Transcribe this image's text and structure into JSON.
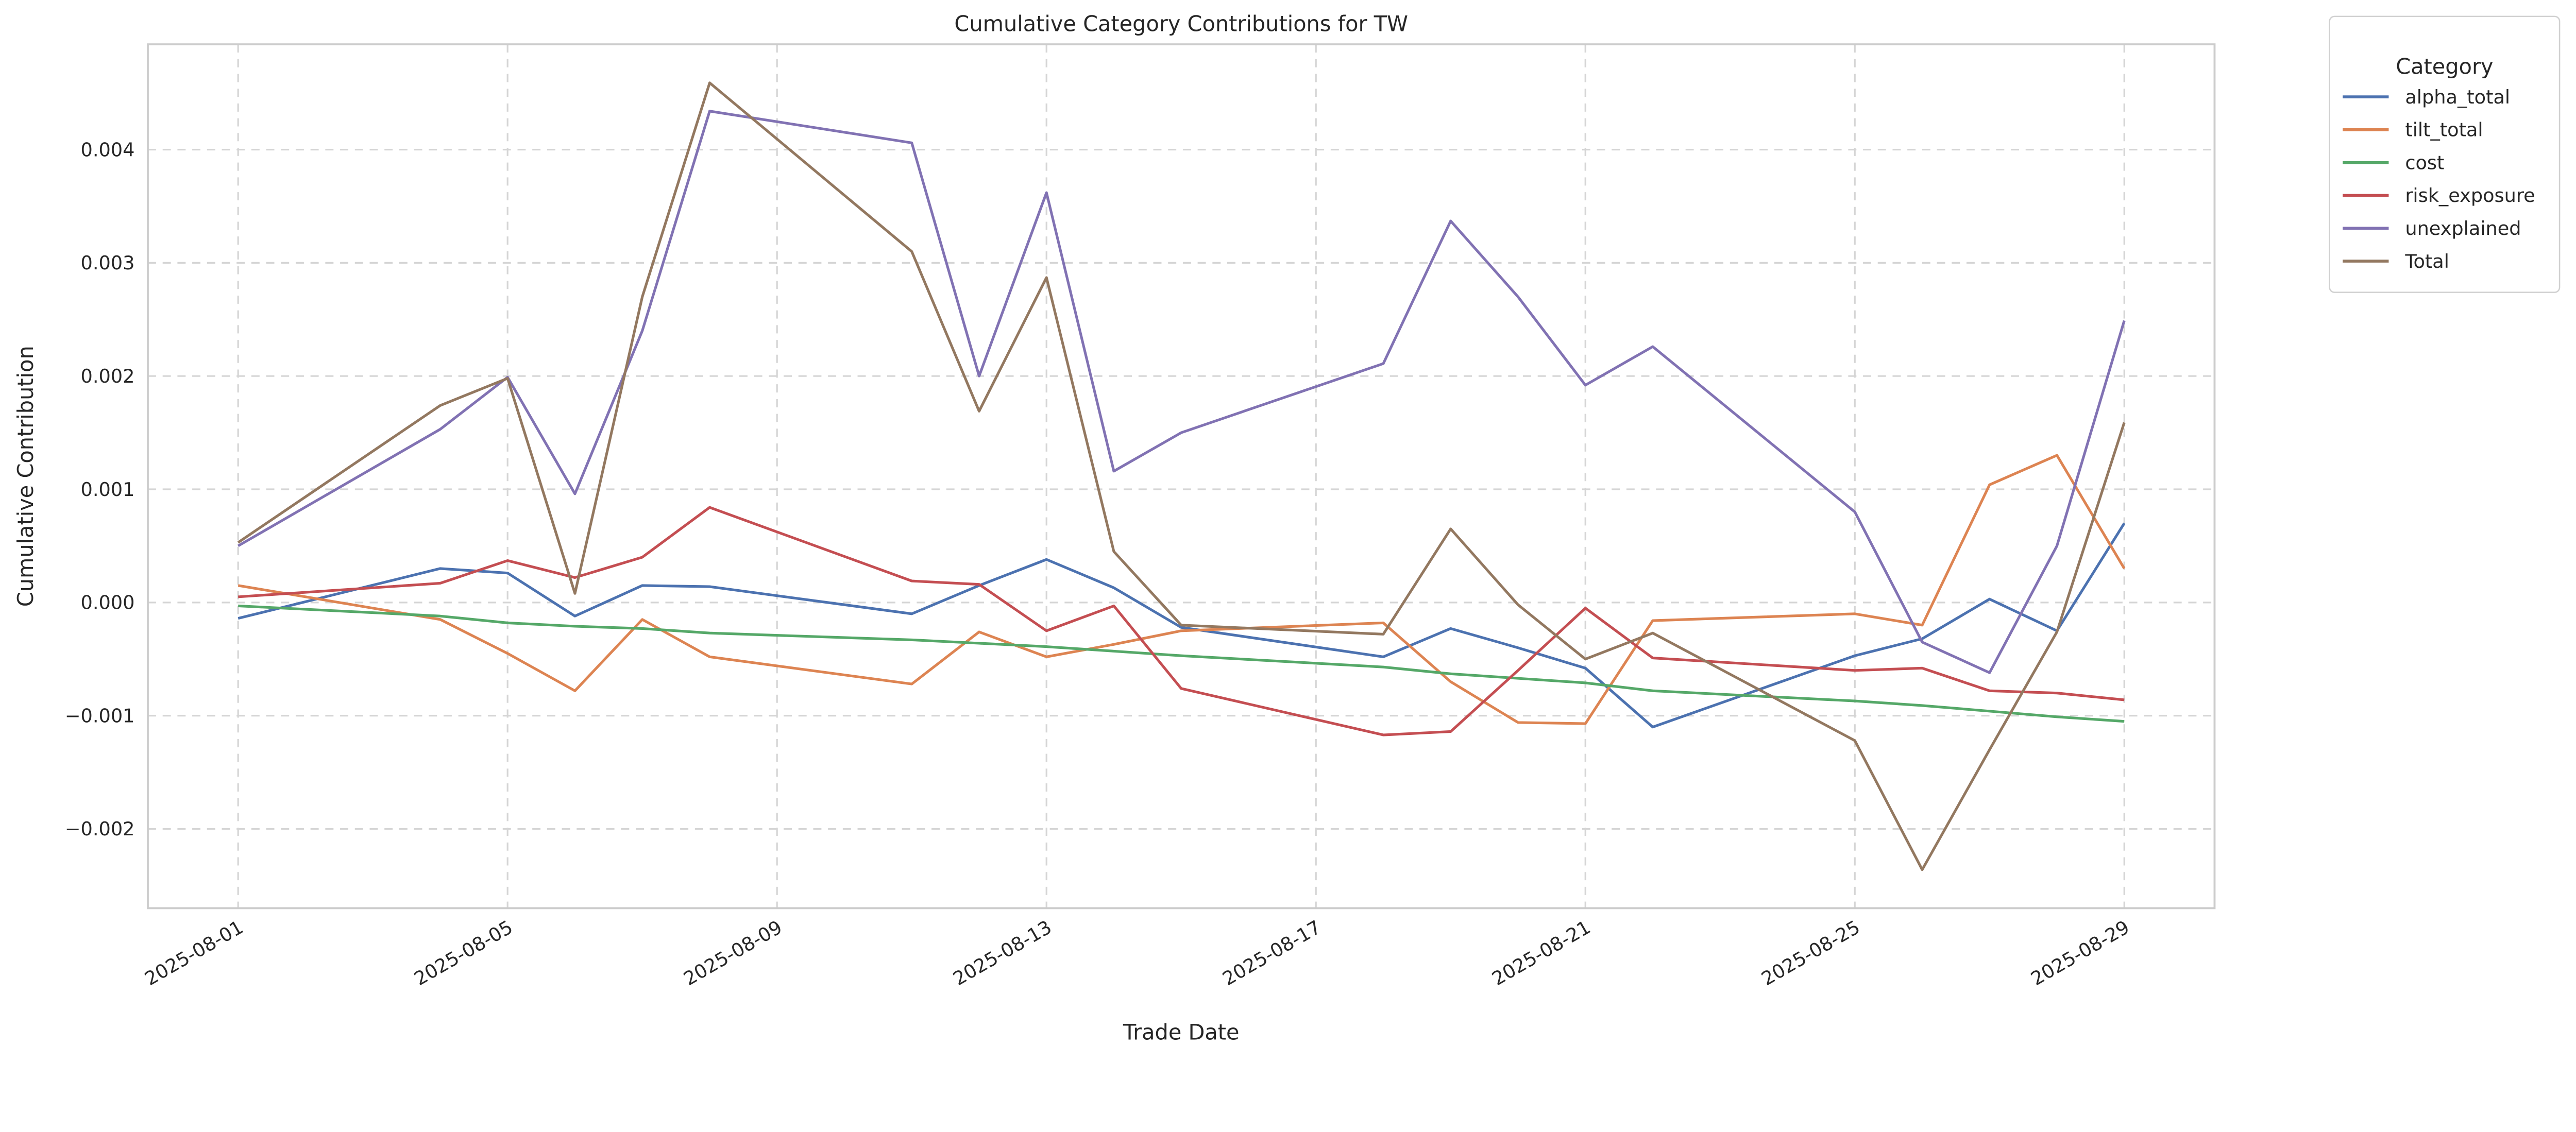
{
  "chart_data": {
    "type": "line",
    "title": "Cumulative Category Contributions for TW",
    "xlabel": "Trade Date",
    "ylabel": "Cumulative Contribution",
    "x": [
      "2025-08-01",
      "2025-08-04",
      "2025-08-05",
      "2025-08-06",
      "2025-08-07",
      "2025-08-08",
      "2025-08-11",
      "2025-08-12",
      "2025-08-13",
      "2025-08-14",
      "2025-08-15",
      "2025-08-18",
      "2025-08-19",
      "2025-08-20",
      "2025-08-21",
      "2025-08-22",
      "2025-08-25",
      "2025-08-26",
      "2025-08-27",
      "2025-08-28",
      "2025-08-29"
    ],
    "x_day_of_month": [
      1,
      4,
      5,
      6,
      7,
      8,
      11,
      12,
      13,
      14,
      15,
      18,
      19,
      20,
      21,
      22,
      25,
      26,
      27,
      28,
      29
    ],
    "xlim_day_of_month": [
      -0.34,
      30.34
    ],
    "xticks": [
      "2025-08-01",
      "2025-08-05",
      "2025-08-09",
      "2025-08-13",
      "2025-08-17",
      "2025-08-21",
      "2025-08-25",
      "2025-08-29"
    ],
    "xticks_day_of_month": [
      1,
      5,
      9,
      13,
      17,
      21,
      25,
      29
    ],
    "ylim": [
      -0.0027,
      0.00493
    ],
    "yticks": [
      -0.002,
      -0.001,
      0.0,
      0.001,
      0.002,
      0.003,
      0.004
    ],
    "ytick_labels": [
      "−0.002",
      "−0.001",
      "0.000",
      "0.001",
      "0.002",
      "0.003",
      "0.004"
    ],
    "grid": true,
    "legend": {
      "title": "Category",
      "placement": "outside-top-right"
    },
    "series": [
      {
        "name": "alpha_total",
        "color": "#4c72b0",
        "values": [
          -0.00014,
          0.0003,
          0.00026,
          -0.00012,
          0.00015,
          0.00014,
          -0.0001,
          0.00015,
          0.00038,
          0.00013,
          -0.00022,
          -0.00048,
          -0.00023,
          -0.0004,
          -0.00058,
          -0.0011,
          -0.00047,
          -0.00032,
          3e-05,
          -0.00025,
          0.0007
        ]
      },
      {
        "name": "tilt_total",
        "color": "#dd8452",
        "values": [
          0.00015,
          -0.00015,
          -0.00045,
          -0.00078,
          -0.00015,
          -0.00048,
          -0.00072,
          -0.00026,
          -0.00048,
          -0.00037,
          -0.00025,
          -0.00018,
          -0.0007,
          -0.00106,
          -0.00107,
          -0.00016,
          -0.0001,
          -0.0002,
          0.00104,
          0.0013,
          0.0003
        ]
      },
      {
        "name": "cost",
        "color": "#55a868",
        "values": [
          -3e-05,
          -0.00012,
          -0.00018,
          -0.00021,
          -0.00023,
          -0.00027,
          -0.00033,
          -0.00036,
          -0.00039,
          -0.00043,
          -0.00047,
          -0.00057,
          -0.00063,
          -0.00067,
          -0.00071,
          -0.00078,
          -0.00087,
          -0.00091,
          -0.00096,
          -0.00101,
          -0.00105
        ]
      },
      {
        "name": "risk_exposure",
        "color": "#c44e52",
        "values": [
          5e-05,
          0.00017,
          0.00037,
          0.00022,
          0.0004,
          0.00084,
          0.00019,
          0.00016,
          -0.00025,
          -3e-05,
          -0.00076,
          -0.00117,
          -0.00114,
          -0.0006,
          -5e-05,
          -0.00049,
          -0.0006,
          -0.00058,
          -0.00078,
          -0.0008,
          -0.00086
        ]
      },
      {
        "name": "unexplained",
        "color": "#8172b3",
        "values": [
          0.0005,
          0.00153,
          0.00199,
          0.00096,
          0.0024,
          0.00434,
          0.00406,
          0.002,
          0.00362,
          0.00116,
          0.0015,
          0.00211,
          0.00337,
          0.0027,
          0.00192,
          0.00226,
          0.0008,
          -0.00035,
          -0.00062,
          0.0005,
          0.00249
        ]
      },
      {
        "name": "Total",
        "color": "#937860",
        "values": [
          0.00053,
          0.00174,
          0.00198,
          8e-05,
          0.0027,
          0.00459,
          0.0031,
          0.00169,
          0.00287,
          0.00045,
          -0.0002,
          -0.00028,
          0.00065,
          -2e-05,
          -0.0005,
          -0.00027,
          -0.00122,
          -0.00236,
          -0.0013,
          -0.00026,
          0.00159
        ]
      }
    ]
  }
}
